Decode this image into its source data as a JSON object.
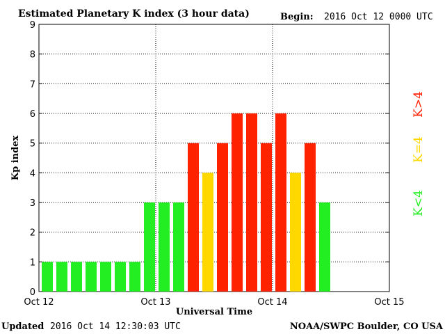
{
  "header": {
    "title": "Estimated Planetary K index (3 hour data)",
    "begin_label": "Begin:",
    "begin_value": "2016 Oct 12 0000 UTC"
  },
  "footer": {
    "updated_label": "Updated",
    "updated_value": "2016 Oct 14 12:30:03 UTC",
    "credit": "NOAA/SWPC Boulder, CO USA"
  },
  "legend": {
    "high": "K>4",
    "equal": "K=4",
    "low": "K<4"
  },
  "colors": {
    "low": "#22ee22",
    "equal": "#ffd800",
    "high": "#ff2200"
  },
  "chart_data": {
    "type": "bar",
    "title": "Estimated Planetary K index (3 hour data)",
    "xlabel": "Universal Time",
    "ylabel": "Kp index",
    "ylim": [
      0,
      9
    ],
    "yticks": [
      0,
      1,
      2,
      3,
      4,
      5,
      6,
      7,
      8,
      9
    ],
    "xticks": [
      "Oct 12",
      "Oct 13",
      "Oct 14",
      "Oct 15"
    ],
    "slots_per_day": 8,
    "days": 3,
    "grid": true,
    "values": [
      1,
      1,
      1,
      1,
      1,
      1,
      1,
      3,
      3,
      3,
      5,
      4,
      5,
      6,
      6,
      5,
      6,
      4,
      5,
      3
    ]
  }
}
